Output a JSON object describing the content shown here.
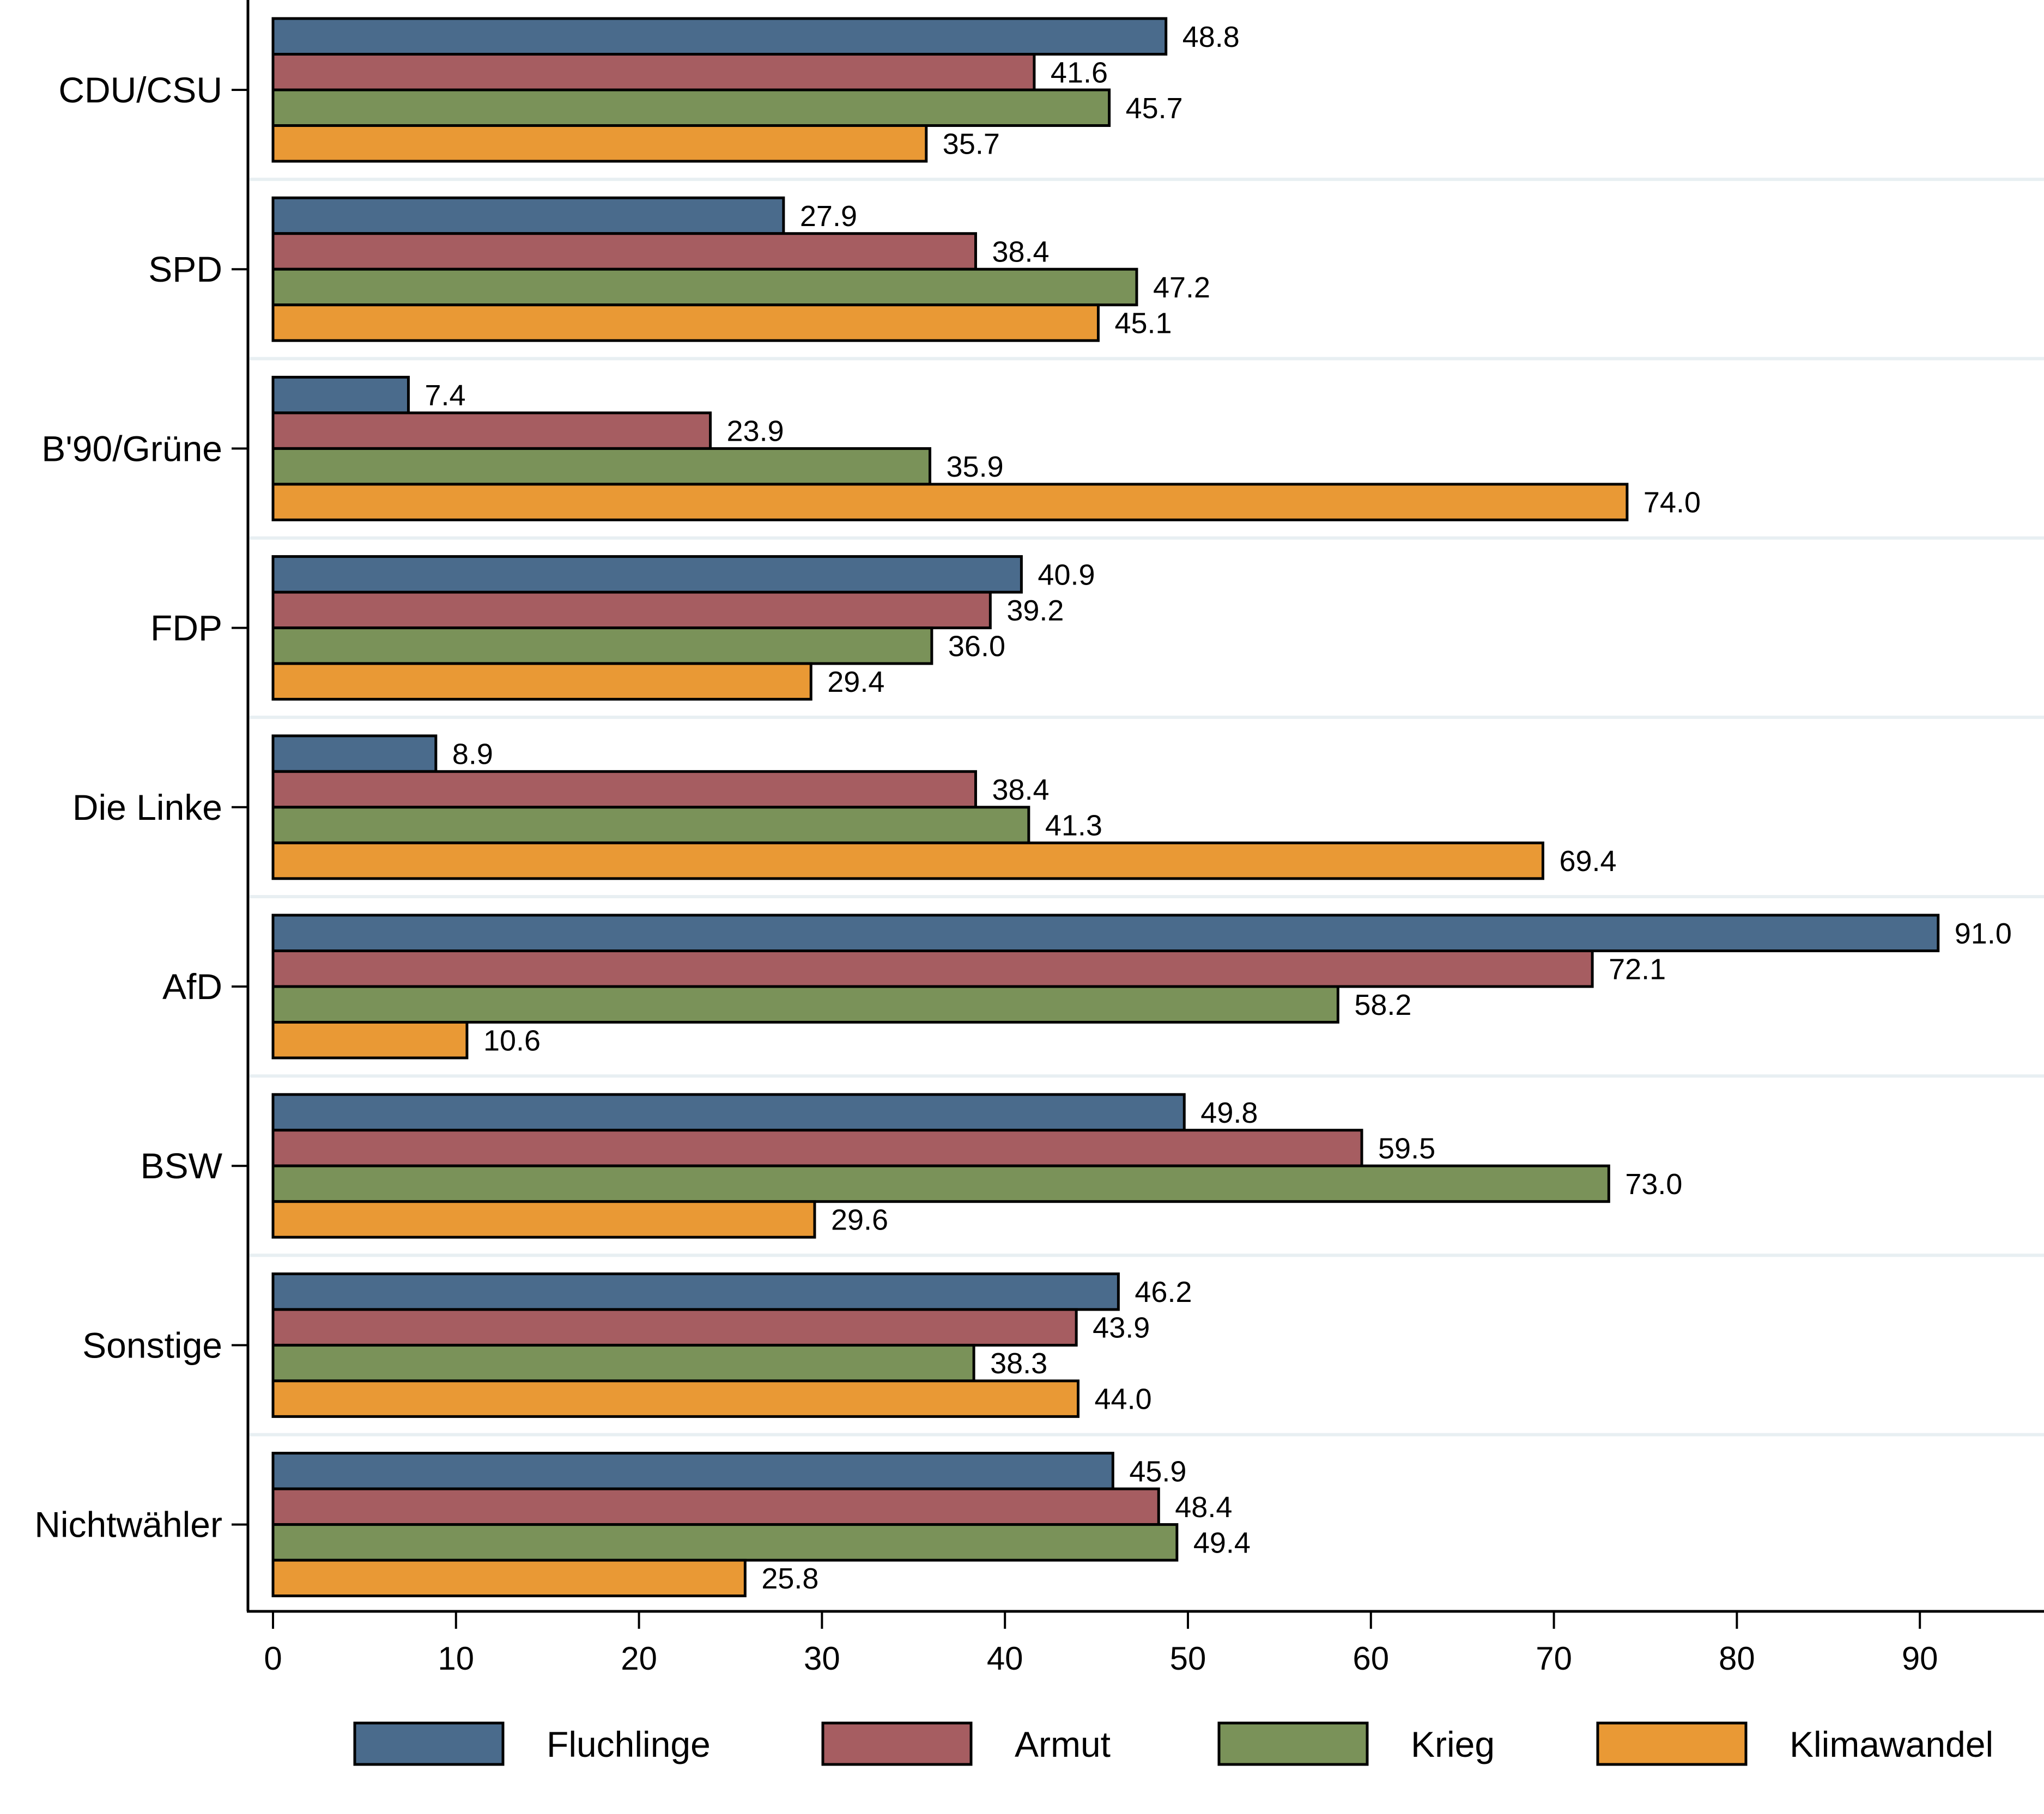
{
  "chart_data": {
    "type": "bar",
    "orientation": "horizontal",
    "title": "",
    "xlabel": "",
    "ylabel": "",
    "xlim": [
      0,
      96
    ],
    "xticks": [
      0,
      10,
      20,
      30,
      40,
      50,
      60,
      70,
      80,
      90
    ],
    "xtick_labels": [
      "0",
      "10",
      "20",
      "30",
      "40",
      "50",
      "60",
      "70",
      "80",
      "90"
    ],
    "grid": false,
    "group_separators": true,
    "legend_position": "bottom",
    "categories": [
      "CDU/CSU",
      "SPD",
      "B'90/Grüne",
      "FDP",
      "Die Linke",
      "AfD",
      "BSW",
      "Sonstige",
      "Nichtwähler"
    ],
    "series": [
      {
        "name": "Fluchlinge",
        "color": "#4a6b8c",
        "values": [
          48.8,
          27.9,
          7.4,
          40.9,
          8.9,
          91.0,
          49.8,
          46.2,
          45.9
        ],
        "labels": [
          "48.8",
          "27.9",
          "7.4",
          "40.9",
          "8.9",
          "91.0",
          "49.8",
          "46.2",
          "45.9"
        ]
      },
      {
        "name": "Armut",
        "color": "#a65d61",
        "values": [
          41.6,
          38.4,
          23.9,
          39.2,
          38.4,
          72.1,
          59.5,
          43.9,
          48.4
        ],
        "labels": [
          "41.6",
          "38.4",
          "23.9",
          "39.2",
          "38.4",
          "72.1",
          "59.5",
          "43.9",
          "48.4"
        ]
      },
      {
        "name": "Krieg",
        "color": "#7a9259",
        "values": [
          45.7,
          47.2,
          35.9,
          36.0,
          41.3,
          58.2,
          73.0,
          38.3,
          49.4
        ],
        "labels": [
          "45.7",
          "47.2",
          "35.9",
          "36.0",
          "41.3",
          "58.2",
          "73.0",
          "38.3",
          "49.4"
        ]
      },
      {
        "name": "Klimawandel",
        "color": "#e99935",
        "values": [
          35.7,
          45.1,
          74.0,
          29.4,
          69.4,
          10.6,
          29.6,
          44.0,
          25.8
        ],
        "labels": [
          "35.7",
          "45.1",
          "74.0",
          "29.4",
          "69.4",
          "10.6",
          "29.6",
          "44.0",
          "25.8"
        ]
      }
    ]
  }
}
